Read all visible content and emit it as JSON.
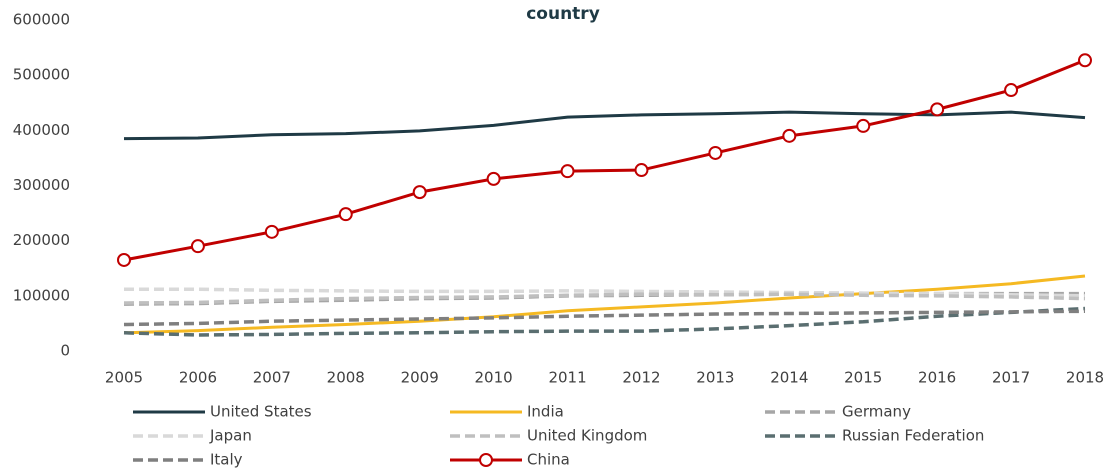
{
  "chart_data": {
    "type": "line",
    "title": "country",
    "categories": [
      "2005",
      "2006",
      "2007",
      "2008",
      "2009",
      "2010",
      "2011",
      "2012",
      "2013",
      "2014",
      "2015",
      "2016",
      "2017",
      "2018"
    ],
    "ylim": [
      0,
      600000
    ],
    "yticks": [
      0,
      100000,
      200000,
      300000,
      400000,
      500000,
      600000
    ],
    "legend": "bottom",
    "series": [
      {
        "name": "United States",
        "color": "#1f3a45",
        "dash": false,
        "values": [
          385000,
          386000,
          392000,
          394000,
          399000,
          409000,
          424000,
          428000,
          430000,
          433000,
          430000,
          428000,
          433000,
          423000
        ]
      },
      {
        "name": "India",
        "color": "#f5b922",
        "dash": false,
        "values": [
          33000,
          37000,
          43000,
          48000,
          54000,
          62000,
          73000,
          80000,
          87000,
          96000,
          104000,
          112000,
          122000,
          136000
        ]
      },
      {
        "name": "Germany",
        "color": "#a6a6a6",
        "dash": true,
        "values": [
          85000,
          86000,
          90000,
          92000,
          95000,
          96000,
          100000,
          101000,
          102000,
          103000,
          104000,
          104000,
          104000,
          104000
        ]
      },
      {
        "name": "Japan",
        "color": "#d9d9d9",
        "dash": true,
        "values": [
          112000,
          112000,
          110000,
          109000,
          108000,
          108000,
          109000,
          108000,
          107000,
          106000,
          105000,
          104000,
          102000,
          100000
        ]
      },
      {
        "name": "United Kingdom",
        "color": "#bfbfbf",
        "dash": true,
        "values": [
          87000,
          88000,
          92000,
          95000,
          97000,
          98000,
          101000,
          103000,
          102000,
          103000,
          101000,
          100000,
          98000,
          95000
        ]
      },
      {
        "name": "Russian Federation",
        "color": "#5a6e70",
        "dash": true,
        "values": [
          33000,
          29000,
          30000,
          32000,
          33000,
          35000,
          36000,
          36000,
          40000,
          46000,
          53000,
          63000,
          70000,
          77000
        ]
      },
      {
        "name": "Italy",
        "color": "#7f7f7f",
        "dash": true,
        "values": [
          48000,
          50000,
          54000,
          56000,
          58000,
          60000,
          63000,
          65000,
          67000,
          68000,
          69000,
          70000,
          71000,
          72000
        ]
      },
      {
        "name": "China",
        "color": "#c00000",
        "dash": false,
        "marker": "circle",
        "values": [
          165000,
          190000,
          216000,
          248000,
          288000,
          312000,
          326000,
          328000,
          359000,
          390000,
          408000,
          438000,
          473000,
          527000
        ]
      }
    ]
  }
}
